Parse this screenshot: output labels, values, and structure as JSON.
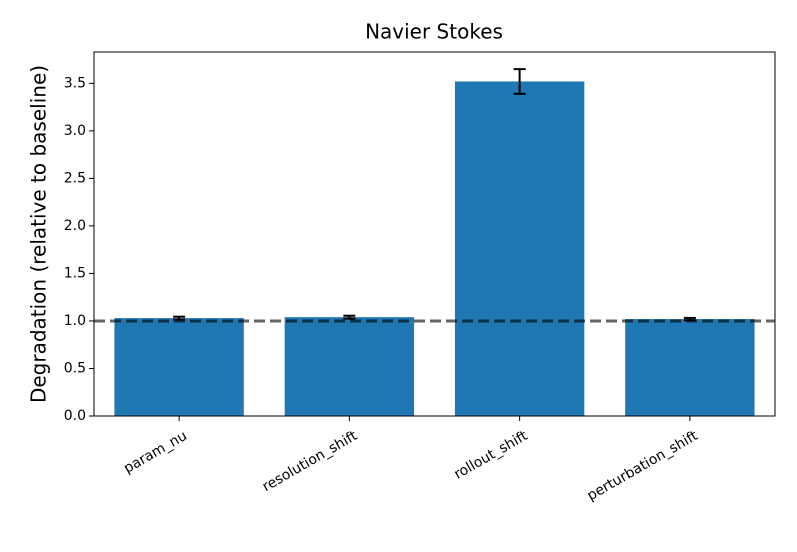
{
  "chart_data": {
    "type": "bar",
    "title": "Navier Stokes",
    "ylabel": "Degradation (relative to baseline)",
    "categories": [
      "param_nu",
      "resolution_shift",
      "rollout_shift",
      "perturbation_shift"
    ],
    "values": [
      1.03,
      1.04,
      3.52,
      1.02
    ],
    "errors": [
      0.015,
      0.015,
      0.13,
      0.012
    ],
    "color": "#1f77b4",
    "ylim": [
      0,
      3.83
    ],
    "yticks": [
      {
        "value": 0,
        "label": "0.0"
      },
      {
        "value": 0.5,
        "label": "0.5"
      },
      {
        "value": 1,
        "label": "1.0"
      },
      {
        "value": 1.5,
        "label": "1.5"
      },
      {
        "value": 2,
        "label": "2.0"
      },
      {
        "value": 2.5,
        "label": "2.5"
      },
      {
        "value": 3,
        "label": "3.0"
      },
      {
        "value": 3.5,
        "label": "3.5"
      }
    ],
    "reference_line": 1.0
  }
}
